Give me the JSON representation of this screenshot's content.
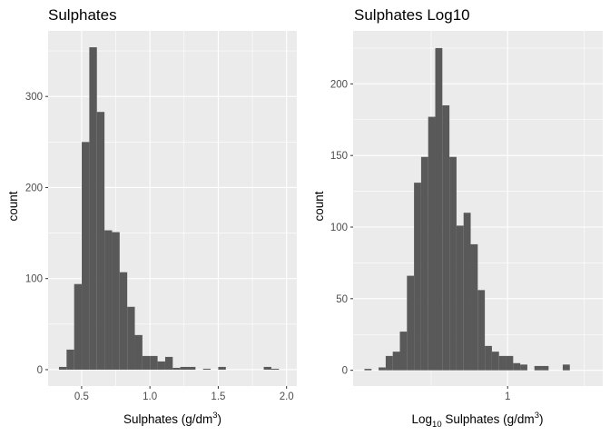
{
  "chart_data": [
    {
      "type": "bar",
      "title": "Sulphates",
      "xlabel_parts": {
        "main": "Sulphates (g/dm",
        "sup": "3",
        "tail": ")"
      },
      "ylabel": "count",
      "x_ticks": [
        0.5,
        1.0,
        1.5,
        2.0
      ],
      "x_tick_labels": [
        "0.5",
        "1.0",
        "1.5",
        "2.0"
      ],
      "y_ticks": [
        0,
        100,
        200,
        300
      ],
      "y_tick_labels": [
        "0",
        "100",
        "200",
        "300"
      ],
      "xlim": [
        0.255,
        2.075
      ],
      "ylim": [
        -18,
        372
      ],
      "bin_width": 0.0555,
      "bin_start": 0.3345,
      "values": [
        3,
        22,
        94,
        250,
        354,
        283,
        153,
        151,
        107,
        69,
        38,
        15,
        15,
        9,
        14,
        2,
        3,
        3,
        0,
        1,
        0,
        3,
        0,
        0,
        0,
        0,
        0,
        3,
        1
      ],
      "background": "#ebebeb",
      "bar_color": "#595959",
      "grid": true
    },
    {
      "type": "bar",
      "title": "Sulphates Log10",
      "xlabel_parts": {
        "pre": "Log",
        "sub": "10",
        "main": " Sulphates (g/dm",
        "sup": "3",
        "tail": ")"
      },
      "ylabel": "count",
      "x_ticks": [
        1
      ],
      "x_tick_labels": [
        "1"
      ],
      "x_scale": "log10",
      "y_ticks": [
        0,
        50,
        100,
        150,
        200
      ],
      "y_tick_labels": [
        "0",
        "50",
        "100",
        "150",
        "200"
      ],
      "log_xlim": [
        -0.6079,
        0.3741
      ],
      "ylim": [
        -11,
        237
      ],
      "log_bin_width": 0.02786,
      "log_bin_start": -0.5633,
      "values": [
        1,
        0,
        2,
        10,
        13,
        27,
        66,
        131,
        149,
        177,
        225,
        185,
        149,
        101,
        110,
        88,
        56,
        17,
        13,
        10,
        10,
        5,
        4,
        0,
        3,
        3,
        0,
        0,
        4
      ],
      "background": "#ebebeb",
      "bar_color": "#595959",
      "grid": true
    }
  ]
}
